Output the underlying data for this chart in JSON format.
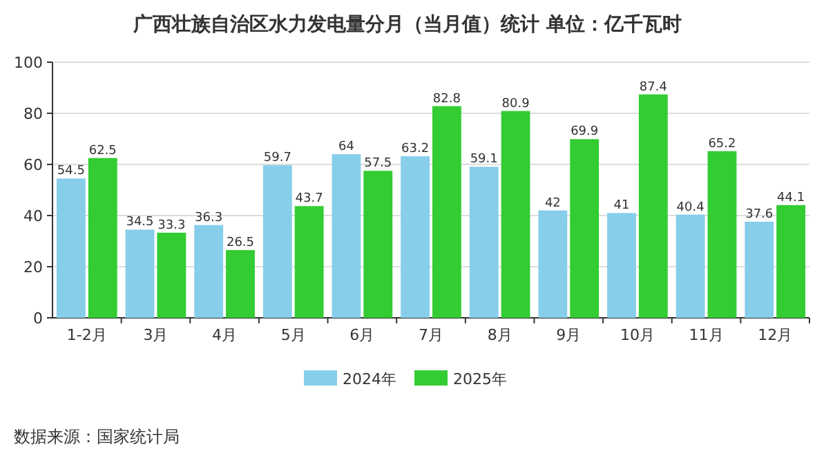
{
  "chart_data": {
    "type": "bar",
    "title": "广西壮族自治区水力发电量分月（当月值）统计  单位：亿千瓦时",
    "categories": [
      "1-2月",
      "3月",
      "4月",
      "5月",
      "6月",
      "7月",
      "8月",
      "9月",
      "10月",
      "11月",
      "12月"
    ],
    "series": [
      {
        "name": "2024年",
        "color": "#87ceeb",
        "values": [
          54.5,
          34.5,
          36.3,
          59.7,
          64,
          63.2,
          59.1,
          42,
          41,
          40.4,
          37.6
        ]
      },
      {
        "name": "2025年",
        "color": "#33cc33",
        "values": [
          62.5,
          33.3,
          26.5,
          43.7,
          57.5,
          82.8,
          80.9,
          69.9,
          87.4,
          65.2,
          44.1
        ]
      }
    ],
    "ylim": [
      0,
      100
    ],
    "yticks": [
      0,
      20,
      40,
      60,
      80,
      100
    ],
    "grid": "y",
    "legend": "bottom",
    "data_labels": true,
    "annotations": [
      "数据来源：国家统计局"
    ]
  }
}
